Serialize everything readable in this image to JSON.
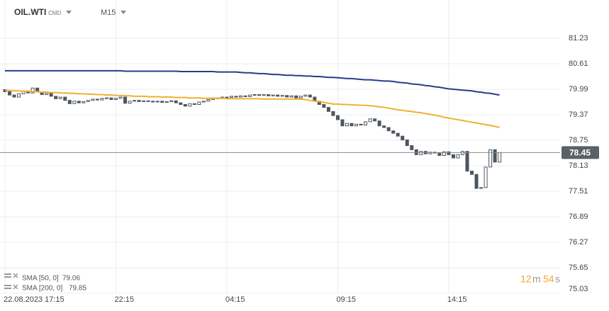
{
  "header": {
    "symbol": "OIL.WTI",
    "market": "CMD",
    "interval": "M15"
  },
  "chart_data": {
    "type": "candlestick",
    "categories": [
      "22.08.2023 17:15",
      null,
      null,
      null,
      null,
      null,
      null,
      null,
      null,
      null,
      null,
      null,
      null,
      null,
      null,
      null,
      null,
      null,
      null,
      null,
      null,
      null,
      null,
      null,
      "22:15",
      null,
      null,
      null,
      null,
      null,
      null,
      null,
      null,
      null,
      null,
      null,
      null,
      null,
      null,
      null,
      null,
      null,
      null,
      null,
      null,
      null,
      null,
      null,
      "04:15",
      null,
      null,
      null,
      null,
      null,
      null,
      null,
      null,
      null,
      null,
      null,
      null,
      null,
      null,
      null,
      null,
      null,
      null,
      null,
      null,
      null,
      null,
      null,
      "09:15",
      null,
      null,
      null,
      null,
      null,
      null,
      null,
      null,
      null,
      null,
      null,
      null,
      null,
      null,
      null,
      null,
      null,
      null,
      null,
      null,
      null,
      null,
      null,
      "14:15",
      null,
      null,
      null,
      null,
      null,
      null,
      null,
      null,
      null,
      null,
      null
    ],
    "open": [
      79.98,
      79.93,
      79.85,
      79.8,
      79.88,
      79.95,
      79.9,
      80.02,
      79.93,
      79.86,
      79.9,
      79.82,
      79.76,
      79.8,
      79.72,
      79.64,
      79.7,
      79.66,
      79.69,
      79.72,
      79.75,
      79.73,
      79.77,
      79.78,
      79.74,
      79.77,
      79.8,
      79.65,
      79.7,
      79.72,
      79.69,
      79.71,
      79.7,
      79.68,
      79.7,
      79.67,
      79.69,
      79.71,
      79.66,
      79.62,
      79.58,
      79.64,
      79.62,
      79.68,
      79.7,
      79.74,
      79.78,
      79.76,
      79.8,
      79.79,
      79.82,
      79.8,
      79.83,
      79.81,
      79.85,
      79.86,
      79.84,
      79.86,
      79.83,
      79.85,
      79.82,
      79.84,
      79.8,
      79.83,
      79.78,
      79.82,
      79.85,
      79.8,
      79.7,
      79.62,
      79.55,
      79.45,
      79.35,
      79.25,
      79.1,
      79.16,
      79.1,
      79.14,
      79.12,
      79.2,
      79.27,
      79.22,
      79.1,
      79.06,
      78.98,
      78.92,
      78.85,
      78.76,
      78.62,
      78.52,
      78.4,
      78.48,
      78.42,
      78.46,
      78.44,
      78.38,
      78.47,
      78.4,
      78.32,
      78.4,
      78.48,
      78.0,
      77.92,
      77.58,
      77.6,
      78.1,
      78.52,
      78.22
    ],
    "close": [
      79.93,
      79.85,
      79.8,
      79.88,
      79.95,
      79.9,
      80.02,
      79.93,
      79.86,
      79.9,
      79.82,
      79.76,
      79.8,
      79.72,
      79.64,
      79.7,
      79.66,
      79.69,
      79.72,
      79.75,
      79.73,
      79.77,
      79.78,
      79.74,
      79.77,
      79.8,
      79.65,
      79.7,
      79.72,
      79.69,
      79.71,
      79.7,
      79.68,
      79.7,
      79.67,
      79.69,
      79.71,
      79.66,
      79.62,
      79.58,
      79.64,
      79.62,
      79.68,
      79.7,
      79.74,
      79.78,
      79.76,
      79.8,
      79.79,
      79.82,
      79.8,
      79.83,
      79.81,
      79.85,
      79.86,
      79.84,
      79.86,
      79.83,
      79.85,
      79.82,
      79.84,
      79.8,
      79.83,
      79.78,
      79.82,
      79.85,
      79.8,
      79.7,
      79.62,
      79.55,
      79.45,
      79.35,
      79.25,
      79.1,
      79.16,
      79.1,
      79.14,
      79.12,
      79.2,
      79.27,
      79.22,
      79.1,
      79.06,
      78.98,
      78.92,
      78.85,
      78.76,
      78.62,
      78.52,
      78.4,
      78.48,
      78.42,
      78.46,
      78.44,
      78.38,
      78.47,
      78.4,
      78.32,
      78.4,
      78.48,
      78.0,
      77.92,
      77.58,
      77.6,
      78.1,
      78.52,
      78.22,
      78.45
    ],
    "up_color": "#ffffff",
    "down_color": "#4d5660",
    "series": [
      {
        "name": "SMA [50, 0]",
        "color": "#f0b030",
        "values": [
          79.96,
          79.96,
          79.95,
          79.95,
          79.94,
          79.94,
          79.93,
          79.93,
          79.92,
          79.92,
          79.91,
          79.91,
          79.9,
          79.9,
          79.89,
          79.89,
          79.88,
          79.88,
          79.87,
          79.87,
          79.86,
          79.86,
          79.85,
          79.85,
          79.84,
          79.84,
          79.83,
          79.83,
          79.82,
          79.82,
          79.82,
          79.81,
          79.81,
          79.81,
          79.8,
          79.8,
          79.8,
          79.79,
          79.79,
          79.79,
          79.78,
          79.78,
          79.78,
          79.77,
          79.77,
          79.77,
          79.77,
          79.77,
          79.76,
          79.76,
          79.76,
          79.76,
          79.76,
          79.76,
          79.76,
          79.76,
          79.75,
          79.75,
          79.75,
          79.75,
          79.75,
          79.75,
          79.75,
          79.75,
          79.75,
          79.74,
          79.72,
          79.7,
          79.69,
          79.67,
          79.65,
          79.63,
          79.63,
          79.62,
          79.62,
          79.61,
          79.61,
          79.6,
          79.6,
          79.59,
          79.58,
          79.56,
          79.55,
          79.53,
          79.51,
          79.49,
          79.48,
          79.46,
          79.45,
          79.43,
          79.42,
          79.4,
          79.38,
          79.36,
          79.34,
          79.31,
          79.29,
          79.27,
          79.25,
          79.23,
          79.21,
          79.19,
          79.17,
          79.15,
          79.13,
          79.11,
          79.09,
          79.06
        ]
      },
      {
        "name": "SMA [200, 0]",
        "color": "#2b3a8c",
        "values": [
          80.44,
          80.44,
          80.44,
          80.44,
          80.44,
          80.44,
          80.44,
          80.44,
          80.44,
          80.44,
          80.44,
          80.44,
          80.44,
          80.44,
          80.44,
          80.44,
          80.44,
          80.44,
          80.44,
          80.44,
          80.44,
          80.44,
          80.44,
          80.44,
          80.44,
          80.44,
          80.43,
          80.43,
          80.43,
          80.43,
          80.43,
          80.43,
          80.43,
          80.43,
          80.43,
          80.43,
          80.43,
          80.43,
          80.42,
          80.42,
          80.42,
          80.42,
          80.42,
          80.42,
          80.42,
          80.42,
          80.41,
          80.41,
          80.41,
          80.41,
          80.41,
          80.4,
          80.39,
          80.39,
          80.38,
          80.37,
          80.37,
          80.36,
          80.35,
          80.35,
          80.34,
          80.33,
          80.33,
          80.32,
          80.32,
          80.31,
          80.31,
          80.3,
          80.3,
          80.29,
          80.28,
          80.28,
          80.27,
          80.26,
          80.25,
          80.25,
          80.24,
          80.23,
          80.22,
          80.22,
          80.21,
          80.2,
          80.19,
          80.19,
          80.18,
          80.16,
          80.15,
          80.14,
          80.12,
          80.11,
          80.1,
          80.08,
          80.07,
          80.05,
          80.04,
          80.02,
          80.0,
          79.99,
          79.98,
          79.97,
          79.96,
          79.95,
          79.93,
          79.92,
          79.9,
          79.89,
          79.87,
          79.85
        ]
      }
    ],
    "ylim": [
      75.03,
      82.16
    ],
    "yticks": [
      81.23,
      80.61,
      79.99,
      79.37,
      78.75,
      78.13,
      77.51,
      76.89,
      76.27,
      75.65,
      75.03
    ],
    "grid": true
  },
  "countdown": {
    "minutes": "12",
    "minutes_unit": "m",
    "seconds": "54",
    "seconds_unit": "s"
  }
}
